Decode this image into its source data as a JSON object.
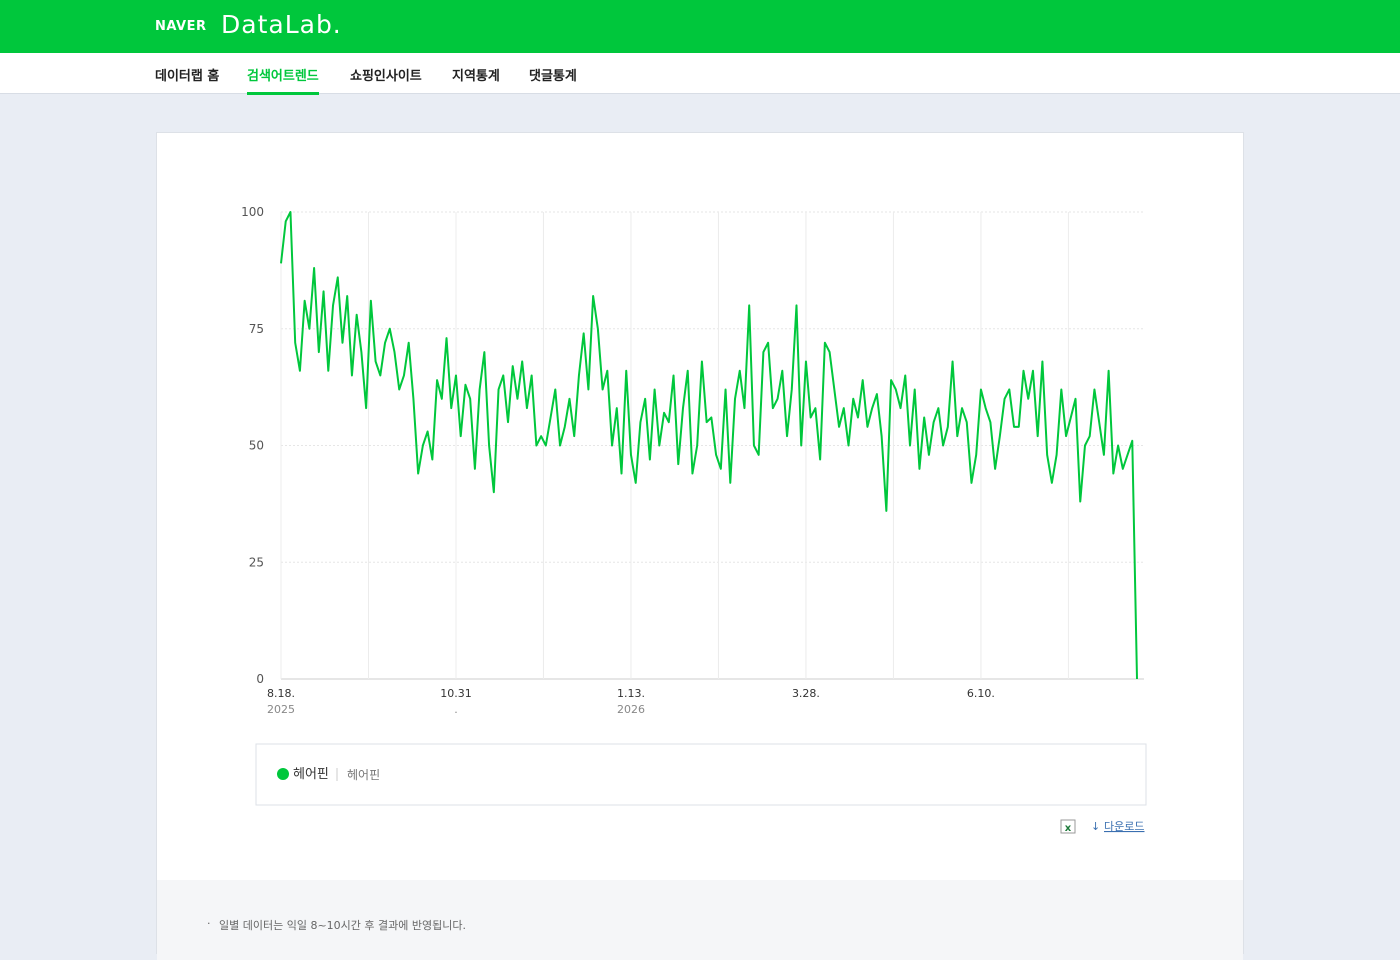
{
  "header": {
    "logo": "NAVER",
    "product": "DataLab."
  },
  "nav": [
    "데이터랩 홈",
    "검색어트렌드",
    "쇼핑인사이트",
    "지역통계",
    "댓글통계"
  ],
  "chart_data": {
    "type": "line",
    "series": [
      {
        "name": "헤어핀",
        "color": "#00c73c",
        "values": [
          89,
          98,
          100,
          72,
          66,
          81,
          75,
          88,
          70,
          83,
          66,
          80,
          86,
          72,
          82,
          65,
          78,
          70,
          58,
          81,
          68,
          65,
          72,
          75,
          70,
          62,
          65,
          72,
          60,
          44,
          50,
          53,
          47,
          64,
          60,
          73,
          58,
          65,
          52,
          63,
          60,
          45,
          62,
          70,
          50,
          40,
          62,
          65,
          55,
          67,
          60,
          68,
          58,
          65,
          50,
          52,
          50,
          56,
          62,
          50,
          54,
          60,
          52,
          65,
          74,
          62,
          82,
          75,
          62,
          66,
          50,
          58,
          44,
          66,
          48,
          42,
          55,
          60,
          47,
          62,
          50,
          57,
          55,
          65,
          46,
          58,
          66,
          44,
          50,
          68,
          55,
          56,
          48,
          45,
          62,
          42,
          60,
          66,
          58,
          80,
          50,
          48,
          70,
          72,
          58,
          60,
          66,
          52,
          62,
          80,
          50,
          68,
          56,
          58,
          47,
          72,
          70,
          62,
          54,
          58,
          50,
          60,
          56,
          64,
          54,
          58,
          61,
          52,
          36,
          64,
          62,
          58,
          65,
          50,
          62,
          45,
          56,
          48,
          55,
          58,
          50,
          54,
          68,
          52,
          58,
          55,
          42,
          48,
          62,
          58,
          55,
          45,
          52,
          60,
          62,
          54,
          54,
          66,
          60,
          66,
          52,
          68,
          48,
          42,
          48,
          62,
          52,
          56,
          60,
          38,
          50,
          52,
          62,
          55,
          48,
          66,
          44,
          50,
          45,
          48,
          51,
          0
        ]
      }
    ],
    "legend_detail": "헤어핀",
    "xlim": [
      0,
      181
    ],
    "xticks": [
      {
        "value": 0,
        "label": "8.18.",
        "year": "2025"
      },
      {
        "value": 37,
        "label": "10.31",
        "year": "."
      },
      {
        "value": 74,
        "label": "1.13.",
        "year": "2026"
      },
      {
        "value": 111,
        "label": "3.28."
      },
      {
        "value": 148,
        "label": "6.10."
      }
    ],
    "ylim": [
      0,
      100
    ],
    "yticks": [
      0,
      25,
      50,
      75,
      100
    ],
    "grid": true
  },
  "download": "다운로드",
  "notes": [
    "일별 데이터는 익일 8~10시간 후 결과에 반영됩니다."
  ]
}
